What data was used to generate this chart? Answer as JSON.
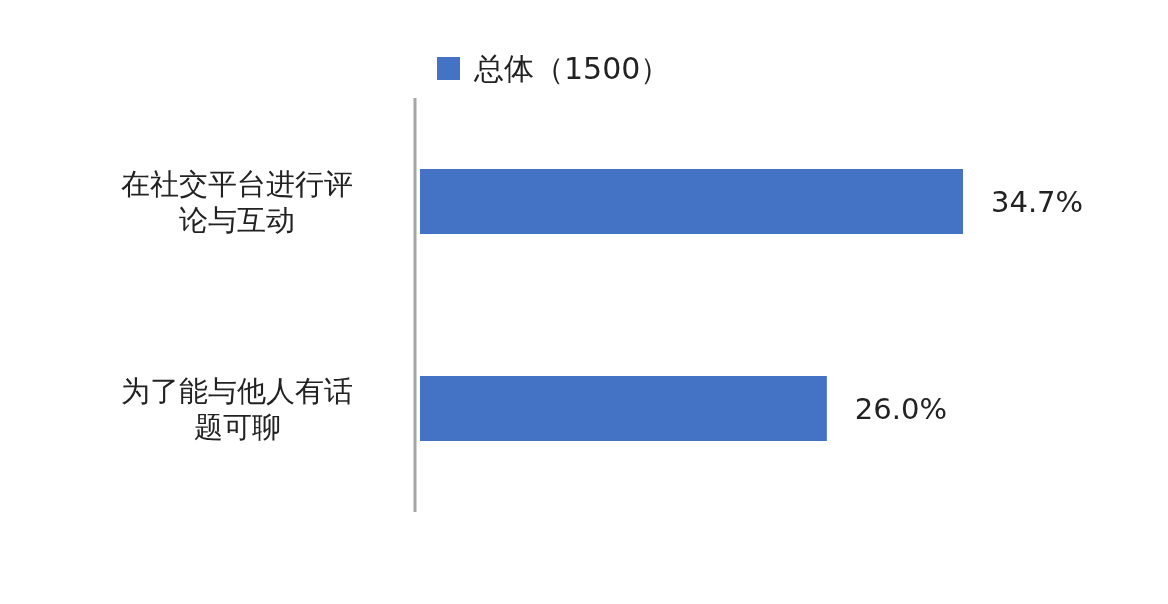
{
  "chart_data": {
    "type": "bar",
    "orientation": "horizontal",
    "categories": [
      "在社交平台进行评论与互动",
      "为了能与他人有话题可聊"
    ],
    "series": [
      {
        "name": "总体（1500）",
        "color": "#4472c4",
        "values": [
          34.7,
          26.0
        ],
        "value_labels": [
          "34.7%",
          "26.0%"
        ]
      }
    ],
    "legend": "top"
  }
}
